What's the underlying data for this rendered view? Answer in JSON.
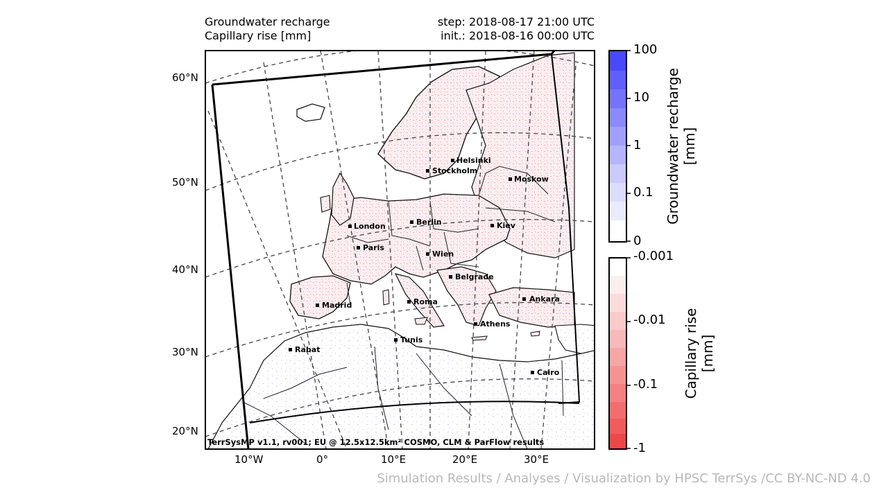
{
  "header": {
    "title_line1": "Groundwater recharge",
    "title_line2": "Capillary rise [mm]",
    "step": "step: 2018-08-17 21:00 UTC",
    "init": "init.: 2018-08-16 00:00 UTC"
  },
  "lat_labels": [
    "60°N",
    "50°N",
    "40°N",
    "30°N",
    "20°N"
  ],
  "lon_labels": [
    "10°W",
    "0°",
    "10°E",
    "20°E",
    "30°E"
  ],
  "cities": [
    {
      "name": "Helsinki"
    },
    {
      "name": "Stockholm"
    },
    {
      "name": "Moskow"
    },
    {
      "name": "London"
    },
    {
      "name": "Berlin"
    },
    {
      "name": "Kiev"
    },
    {
      "name": "Paris"
    },
    {
      "name": "Wien"
    },
    {
      "name": "Belgrade"
    },
    {
      "name": "Madrid"
    },
    {
      "name": "Roma"
    },
    {
      "name": "Ankara"
    },
    {
      "name": "Athens"
    },
    {
      "name": "Tunis"
    },
    {
      "name": "Rabat"
    },
    {
      "name": "Cairo"
    }
  ],
  "credit_inside": "TerrSysMP v1.1, rv001; EU @ 12.5x12.5km² COSMO, CLM & ParFlow results",
  "colorbar_recharge": {
    "label_line1": "Groundwater recharge",
    "label_line2": "[mm]",
    "ticks": [
      "100",
      "10",
      "1",
      "0.1",
      "0"
    ],
    "color": "#4444ff"
  },
  "colorbar_capillary": {
    "label_line1": "Capillary rise",
    "label_line2": "[mm]",
    "ticks": [
      "-0.001",
      "-0.01",
      "-0.1",
      "-1"
    ],
    "color": "#ff4444"
  },
  "footer": "Simulation Results / Analyses / Visualization by HPSC TerrSys /CC BY-NC-ND 4.0"
}
